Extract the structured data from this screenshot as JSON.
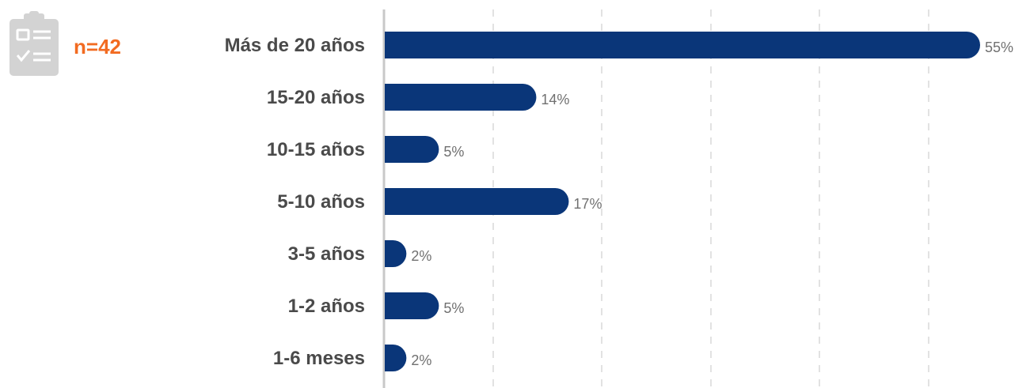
{
  "badge": {
    "icon": "clipboard-checklist-icon",
    "n_label": "n=42",
    "n_color": "#f26b21",
    "icon_color": "#d3d3d3"
  },
  "colors": {
    "bar": "#0a3679",
    "axis": "#c8c8c8",
    "grid": "#d9d9d9",
    "category_text": "#4a4a4a",
    "value_text": "#707070"
  },
  "chart_data": {
    "type": "bar",
    "orientation": "horizontal",
    "categories": [
      "Más de 20 años",
      "15-20 años",
      "10-15 años",
      "5-10 años",
      "3-5 años",
      "1-2 años",
      "1-6 meses"
    ],
    "values": [
      55,
      14,
      5,
      17,
      2,
      5,
      2
    ],
    "value_labels": [
      "55%",
      "14%",
      "5%",
      "17%",
      "2%",
      "5%",
      "2%"
    ],
    "unit": "%",
    "xlim": [
      0,
      55
    ],
    "grid": "vertical dashed",
    "legend": "none"
  }
}
